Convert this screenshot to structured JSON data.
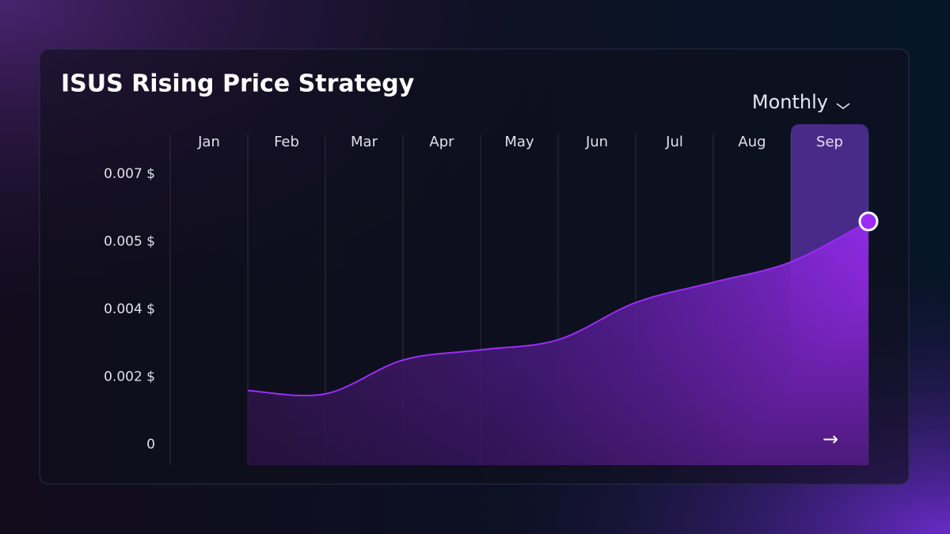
{
  "chart_data": {
    "type": "area",
    "title": "ISUS Rising Price Strategy",
    "categories": [
      "Jan",
      "Feb",
      "Mar",
      "Apr",
      "May",
      "Jun",
      "Jul",
      "Aug",
      "Sep"
    ],
    "series": [
      {
        "color": "#9b2cf5",
        "values": [
          0.0016,
          0.0015,
          0.0025,
          0.0028,
          0.0031,
          0.0041,
          0.0044,
          0.0047,
          0.0056
        ]
      }
    ],
    "ylim": [
      0,
      0.007
    ],
    "yticks": [
      {
        "value": 0,
        "label": "0"
      },
      {
        "value": 0.002,
        "label": "0.002 $"
      },
      {
        "value": 0.004,
        "label": "0.004 $"
      },
      {
        "value": 0.005,
        "label": "0.005 $"
      },
      {
        "value": 0.007,
        "label": "0.007 $"
      }
    ]
  },
  "controls": {
    "period": "Monthly"
  }
}
